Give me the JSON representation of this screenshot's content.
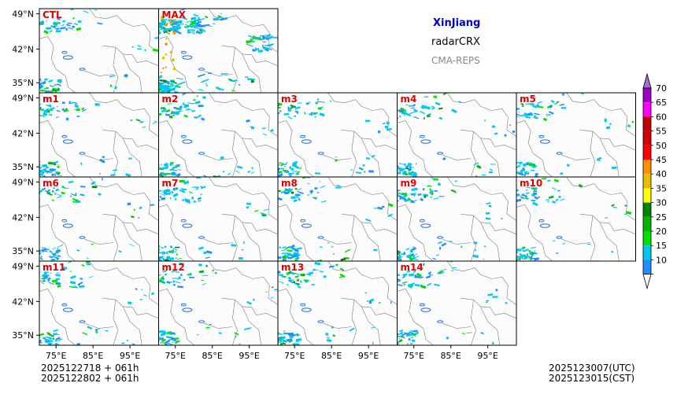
{
  "title": {
    "region": "XinJiang",
    "variable": "radarCRX",
    "model": "CMA-REPS"
  },
  "colors": {
    "region_title": "#0000cc",
    "variable_text": "#000000",
    "model_text": "#888888",
    "panel_label": "#e00000",
    "border_line": "#7a7a7a",
    "lake": "#1f6fd8"
  },
  "panels": [
    {
      "label": "CTL"
    },
    {
      "label": "MAX"
    },
    {
      "label": "m1"
    },
    {
      "label": "m2"
    },
    {
      "label": "m3"
    },
    {
      "label": "m4"
    },
    {
      "label": "m5"
    },
    {
      "label": "m6"
    },
    {
      "label": "m7"
    },
    {
      "label": "m8"
    },
    {
      "label": "m9"
    },
    {
      "label": "m10"
    },
    {
      "label": "m11"
    },
    {
      "label": "m12"
    },
    {
      "label": "m13"
    },
    {
      "label": "m14"
    }
  ],
  "lat_ticks": [
    "49°N",
    "42°N",
    "35°N"
  ],
  "lon_ticks": [
    "75°E",
    "85°E",
    "95°E"
  ],
  "init_times": [
    "2025122718  +  061h",
    "2025122802  +  061h"
  ],
  "valid_times": [
    "2025123007(UTC)",
    "2025123015(CST)"
  ],
  "colorbar": {
    "labels": [
      "10",
      "15",
      "20",
      "25",
      "30",
      "35",
      "40",
      "45",
      "50",
      "55",
      "60",
      "65",
      "70"
    ],
    "colors": [
      "#1e90ff",
      "#00c8f0",
      "#00e000",
      "#00b400",
      "#008000",
      "#ffff00",
      "#e6c000",
      "#ff9000",
      "#ff0000",
      "#d20000",
      "#c00000",
      "#ff00ff",
      "#9a00c8"
    ],
    "under_color": "#ffffff",
    "over_color": "#a070d0"
  }
}
